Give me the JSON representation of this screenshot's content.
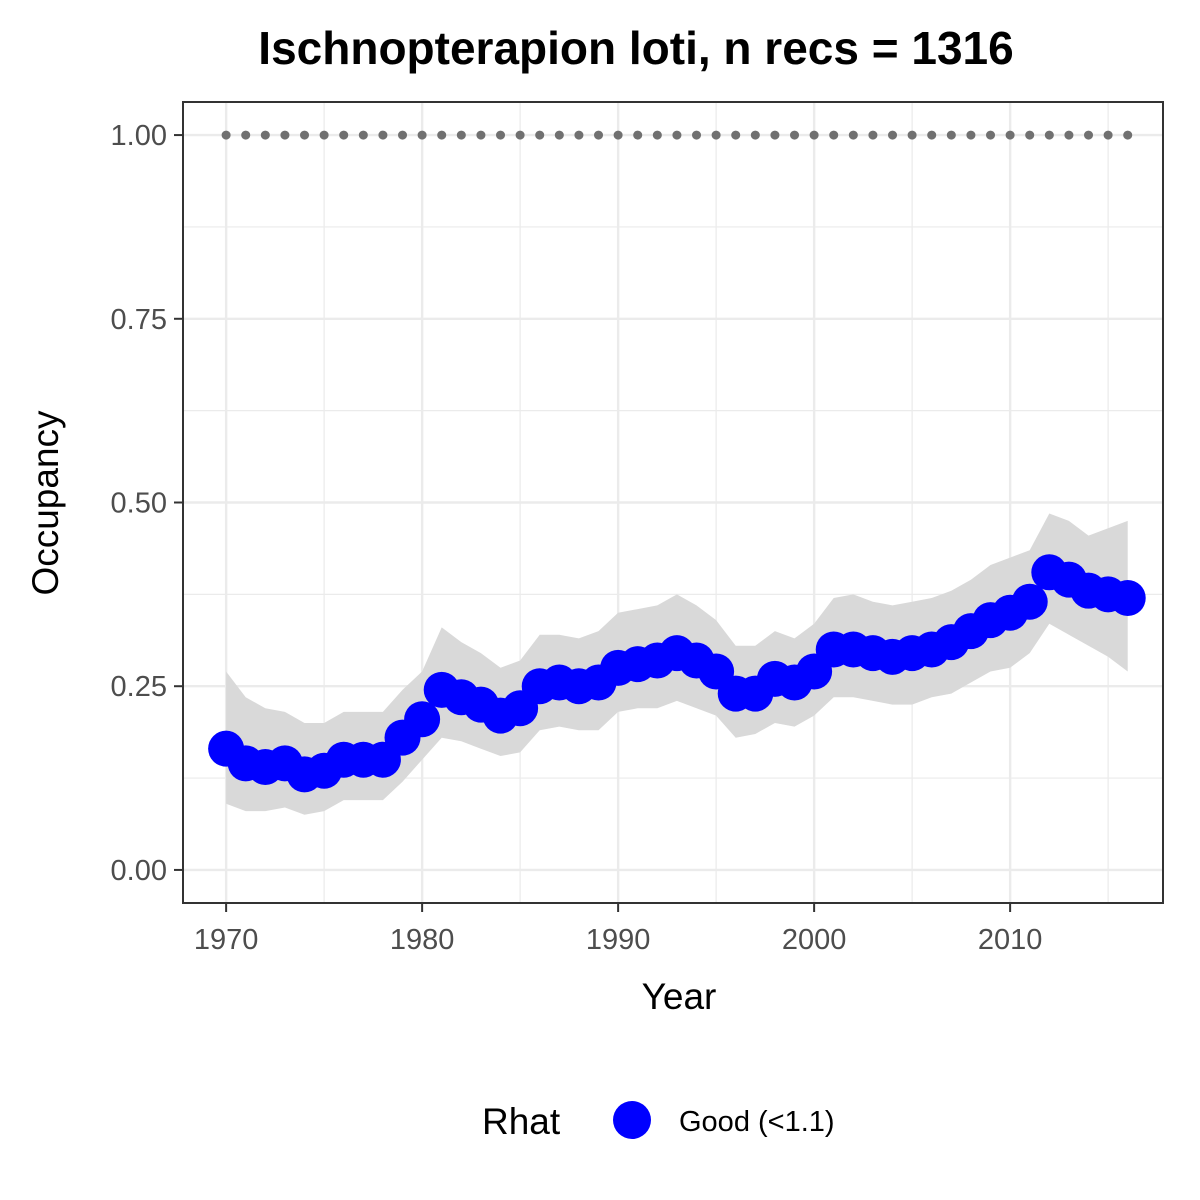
{
  "chart_data": {
    "type": "line",
    "title": "Ischnopterapion loti, n recs = 1316",
    "xlabel": "Year",
    "ylabel": "Occupancy",
    "xlim": [
      1967.8,
      2017.8
    ],
    "ylim": [
      -0.045,
      1.045
    ],
    "x_ticks": [
      1970,
      1980,
      1990,
      2000,
      2010
    ],
    "x_tick_labels": [
      "1970",
      "1980",
      "1990",
      "2000",
      "2010"
    ],
    "y_ticks": [
      0,
      0.25,
      0.5,
      0.75,
      1.0
    ],
    "y_tick_labels": [
      "0.00",
      "0.25",
      "0.50",
      "0.75",
      "1.00"
    ],
    "grid": true,
    "legend": {
      "title": "Rhat",
      "placement": "bottom",
      "entries": [
        {
          "label": "Good (<1.1)",
          "color": "#0000ff"
        }
      ]
    },
    "colors": {
      "points": "#0000ff",
      "band": "#d9d9d9",
      "reference": "#707070",
      "grid": "#ebebeb",
      "panel_border": "#333333"
    },
    "reference_line": {
      "y": 1.0,
      "style": "dotted"
    },
    "x": [
      1970,
      1971,
      1972,
      1973,
      1974,
      1975,
      1976,
      1977,
      1978,
      1979,
      1980,
      1981,
      1982,
      1983,
      1984,
      1985,
      1986,
      1987,
      1988,
      1989,
      1990,
      1991,
      1992,
      1993,
      1994,
      1995,
      1996,
      1997,
      1998,
      1999,
      2000,
      2001,
      2002,
      2003,
      2004,
      2005,
      2006,
      2007,
      2008,
      2009,
      2010,
      2011,
      2012,
      2013,
      2014,
      2015,
      2016
    ],
    "series": [
      {
        "values": [
          0.165,
          0.145,
          0.14,
          0.145,
          0.13,
          0.135,
          0.15,
          0.15,
          0.15,
          0.18,
          0.205,
          0.245,
          0.235,
          0.225,
          0.21,
          0.22,
          0.25,
          0.255,
          0.25,
          0.255,
          0.275,
          0.28,
          0.285,
          0.295,
          0.285,
          0.27,
          0.24,
          0.24,
          0.26,
          0.255,
          0.27,
          0.3,
          0.3,
          0.295,
          0.29,
          0.295,
          0.3,
          0.31,
          0.325,
          0.34,
          0.35,
          0.365,
          0.405,
          0.395,
          0.38,
          0.375,
          0.37
        ],
        "lower": [
          0.09,
          0.08,
          0.08,
          0.085,
          0.075,
          0.08,
          0.095,
          0.095,
          0.095,
          0.12,
          0.15,
          0.18,
          0.175,
          0.165,
          0.155,
          0.16,
          0.19,
          0.195,
          0.19,
          0.19,
          0.215,
          0.22,
          0.22,
          0.23,
          0.22,
          0.21,
          0.18,
          0.185,
          0.2,
          0.195,
          0.21,
          0.235,
          0.235,
          0.23,
          0.225,
          0.225,
          0.235,
          0.24,
          0.255,
          0.27,
          0.275,
          0.295,
          0.335,
          0.32,
          0.305,
          0.29,
          0.27
        ],
        "upper": [
          0.27,
          0.235,
          0.22,
          0.215,
          0.2,
          0.2,
          0.215,
          0.215,
          0.215,
          0.245,
          0.27,
          0.33,
          0.31,
          0.295,
          0.275,
          0.285,
          0.32,
          0.32,
          0.315,
          0.325,
          0.35,
          0.355,
          0.36,
          0.375,
          0.36,
          0.34,
          0.305,
          0.305,
          0.325,
          0.315,
          0.335,
          0.37,
          0.375,
          0.365,
          0.36,
          0.365,
          0.37,
          0.38,
          0.395,
          0.415,
          0.425,
          0.435,
          0.485,
          0.475,
          0.455,
          0.465,
          0.475
        ]
      }
    ]
  }
}
